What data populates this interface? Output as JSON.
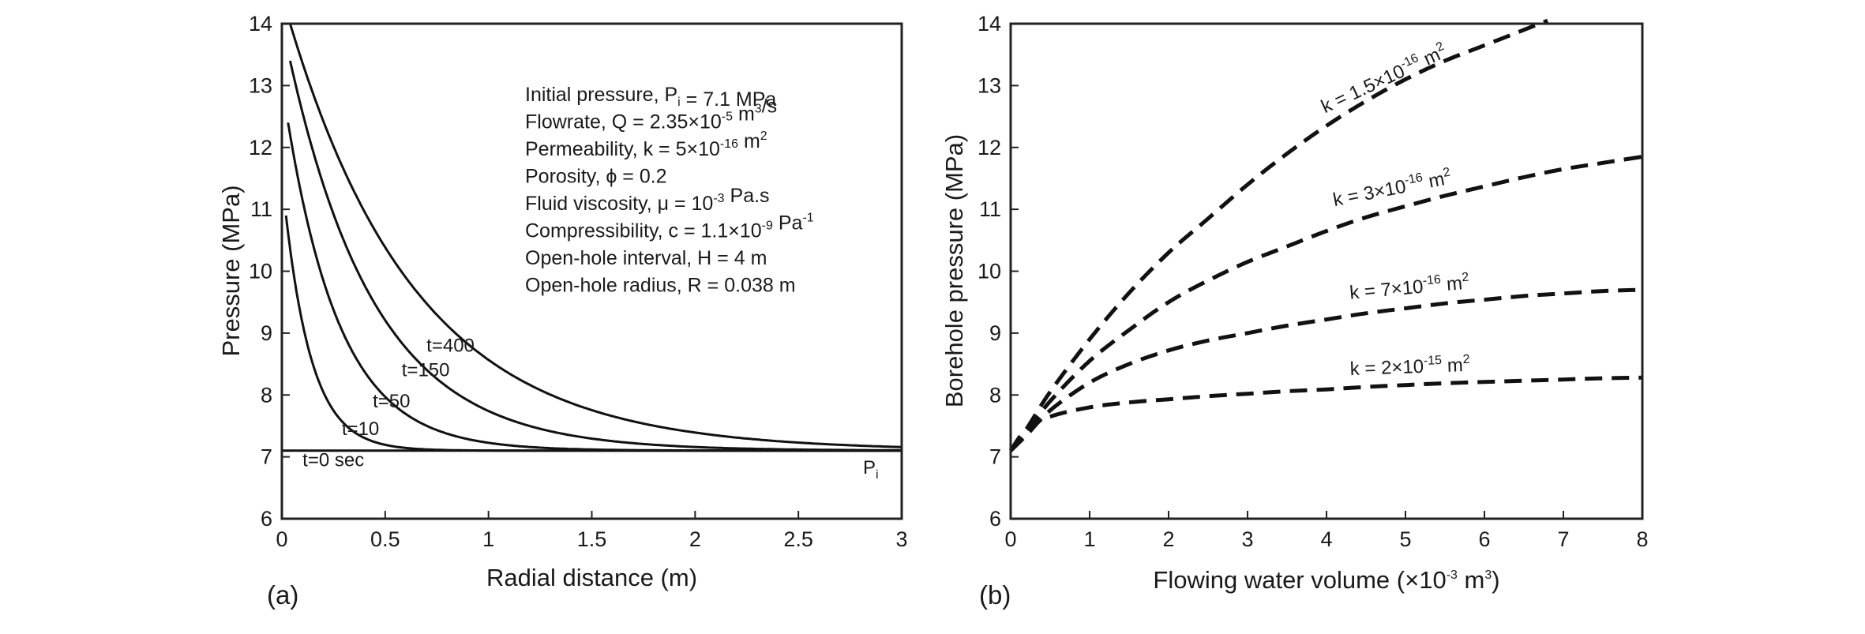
{
  "chart_data": [
    {
      "type": "line",
      "panel_label": "(a)",
      "xlabel": "Radial distance (m)",
      "ylabel": "Pressure (MPa)",
      "xlim": [
        0,
        3
      ],
      "ylim": [
        6,
        14
      ],
      "xticks": [
        "0",
        "0.5",
        "1",
        "1.5",
        "2",
        "2.5",
        "3"
      ],
      "yticks": [
        "6",
        "7",
        "8",
        "9",
        "10",
        "11",
        "12",
        "13",
        "14"
      ],
      "grid": false,
      "initial_pressure": 7.1,
      "initial_pressure_label": {
        "main": "P",
        "sub": "i"
      },
      "annotations": [
        {
          "parts": [
            {
              "t": "Initial pressure, P"
            },
            {
              "t": "i",
              "sub": true
            },
            {
              "t": " = 7.1 MPa"
            }
          ]
        },
        {
          "parts": [
            {
              "t": "Flowrate, Q = 2.35×10"
            },
            {
              "t": "-5",
              "sup": true
            },
            {
              "t": " m"
            },
            {
              "t": "3",
              "sup": true
            },
            {
              "t": "/s"
            }
          ]
        },
        {
          "parts": [
            {
              "t": "Permeability, k = 5×10"
            },
            {
              "t": "-16",
              "sup": true
            },
            {
              "t": " m"
            },
            {
              "t": "2",
              "sup": true
            }
          ]
        },
        {
          "parts": [
            {
              "t": "Porosity, ϕ = 0.2"
            }
          ]
        },
        {
          "parts": [
            {
              "t": "Fluid viscosity, μ = 10"
            },
            {
              "t": "-3",
              "sup": true
            },
            {
              "t": " Pa.s"
            }
          ]
        },
        {
          "parts": [
            {
              "t": "Compressibility, c = 1.1×10"
            },
            {
              "t": "-9",
              "sup": true
            },
            {
              "t": " Pa"
            },
            {
              "t": "-1",
              "sup": true
            }
          ]
        },
        {
          "parts": [
            {
              "t": "Open-hole interval, H = 4 m"
            }
          ]
        },
        {
          "parts": [
            {
              "t": "Open-hole radius, R = 0.038 m"
            }
          ]
        }
      ],
      "series": [
        {
          "name": "t=0 sec",
          "label": "t=0 sec",
          "kind": "flat",
          "value": 7.1,
          "label_at": [
            0.1,
            6.85
          ]
        },
        {
          "name": "t=10",
          "label": "t=10",
          "p0": 10.9,
          "x0": 0.02,
          "L": 0.13,
          "label_at": [
            0.29,
            7.35
          ]
        },
        {
          "name": "t=50",
          "label": "t=50",
          "p0": 12.4,
          "x0": 0.03,
          "L": 0.26,
          "label_at": [
            0.44,
            7.8
          ]
        },
        {
          "name": "t=150",
          "label": "t=150",
          "p0": 13.4,
          "x0": 0.04,
          "L": 0.42,
          "label_at": [
            0.58,
            8.3
          ]
        },
        {
          "name": "t=400",
          "label": "t=400",
          "p0": 14.0,
          "x0": 0.04,
          "L": 0.62,
          "label_at": [
            0.7,
            8.7
          ]
        }
      ]
    },
    {
      "type": "line",
      "panel_label": "(b)",
      "xlabel": "Flowing water volume (×10",
      "xlabel_sup": "-3",
      "xlabel_unit": " m",
      "xlabel_unit_sup": "3",
      "xlabel_end": ")",
      "ylabel": "Borehole pressure (MPa)",
      "xlim": [
        0,
        8
      ],
      "ylim": [
        6,
        14
      ],
      "xticks": [
        "0",
        "1",
        "2",
        "3",
        "4",
        "5",
        "6",
        "7",
        "8"
      ],
      "yticks": [
        "6",
        "7",
        "8",
        "9",
        "10",
        "11",
        "12",
        "13",
        "14"
      ],
      "grid": false,
      "line_style": "dashed",
      "series": [
        {
          "name": "k = 1.5×10^-16 m^2",
          "label_main": "k = 1.5×10",
          "label_exp": "-16",
          "label_unit": " m",
          "label_unit_exp": "2",
          "points": [
            [
              0,
              7.1
            ],
            [
              0.2,
              7.45
            ],
            [
              0.5,
              8.05
            ],
            [
              1,
              8.9
            ],
            [
              1.5,
              9.65
            ],
            [
              2,
              10.3
            ],
            [
              2.5,
              10.85
            ],
            [
              3,
              11.4
            ],
            [
              3.5,
              11.9
            ],
            [
              4,
              12.35
            ],
            [
              4.5,
              12.75
            ],
            [
              5,
              13.1
            ],
            [
              5.5,
              13.4
            ],
            [
              6,
              13.65
            ],
            [
              6.5,
              13.9
            ],
            [
              6.8,
              14.05
            ]
          ],
          "label_at": [
            3.98,
            12.55
          ],
          "label_angle": -25
        },
        {
          "name": "k = 3×10^-16 m^2",
          "label_main": "k = 3×10",
          "label_exp": "-16",
          "label_unit": " m",
          "label_unit_exp": "2",
          "points": [
            [
              0,
              7.1
            ],
            [
              0.2,
              7.4
            ],
            [
              0.5,
              7.9
            ],
            [
              1,
              8.55
            ],
            [
              1.5,
              9.05
            ],
            [
              2,
              9.5
            ],
            [
              2.5,
              9.85
            ],
            [
              3,
              10.15
            ],
            [
              3.5,
              10.4
            ],
            [
              4,
              10.65
            ],
            [
              4.5,
              10.87
            ],
            [
              5,
              11.05
            ],
            [
              5.5,
              11.22
            ],
            [
              6,
              11.37
            ],
            [
              6.5,
              11.52
            ],
            [
              7,
              11.65
            ],
            [
              7.5,
              11.75
            ],
            [
              8,
              11.85
            ]
          ],
          "label_at": [
            4.1,
            11.05
          ],
          "label_angle": -11
        },
        {
          "name": "k = 7×10^-16 m^2",
          "label_main": "k = 7×10",
          "label_exp": "-16",
          "label_unit": " m",
          "label_unit_exp": "2",
          "points": [
            [
              0,
              7.1
            ],
            [
              0.2,
              7.35
            ],
            [
              0.5,
              7.75
            ],
            [
              1,
              8.2
            ],
            [
              1.5,
              8.5
            ],
            [
              2,
              8.72
            ],
            [
              2.5,
              8.88
            ],
            [
              3,
              9.0
            ],
            [
              3.5,
              9.12
            ],
            [
              4,
              9.22
            ],
            [
              4.5,
              9.32
            ],
            [
              5,
              9.4
            ],
            [
              5.5,
              9.48
            ],
            [
              6,
              9.54
            ],
            [
              6.5,
              9.6
            ],
            [
              7,
              9.64
            ],
            [
              7.5,
              9.68
            ],
            [
              8,
              9.7
            ]
          ],
          "label_at": [
            4.3,
            9.55
          ],
          "label_angle": -5
        },
        {
          "name": "k = 2×10^-15 m^2",
          "label_main": "k = 2×10",
          "label_exp": "-15",
          "label_unit": " m",
          "label_unit_exp": "2",
          "points": [
            [
              0,
              7.1
            ],
            [
              0.2,
              7.45
            ],
            [
              0.5,
              7.65
            ],
            [
              1,
              7.8
            ],
            [
              1.5,
              7.88
            ],
            [
              2,
              7.93
            ],
            [
              2.5,
              7.98
            ],
            [
              3,
              8.02
            ],
            [
              3.5,
              8.06
            ],
            [
              4,
              8.09
            ],
            [
              4.5,
              8.13
            ],
            [
              5,
              8.16
            ],
            [
              5.5,
              8.19
            ],
            [
              6,
              8.21
            ],
            [
              6.5,
              8.23
            ],
            [
              7,
              8.25
            ],
            [
              7.5,
              8.27
            ],
            [
              8,
              8.28
            ]
          ],
          "label_at": [
            4.3,
            8.32
          ],
          "label_angle": -2
        }
      ]
    }
  ]
}
